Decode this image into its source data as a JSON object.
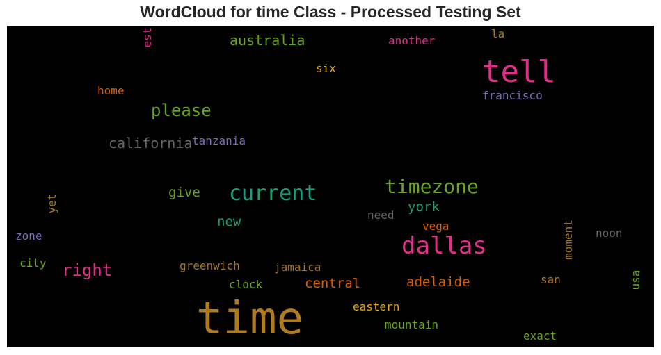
{
  "chart_data": {
    "type": "wordcloud",
    "title": "WordCloud for time Class - Processed Testing Set",
    "background": "#000000",
    "words": [
      {
        "text": "time",
        "color": "#b07a1f"
      },
      {
        "text": "tell",
        "color": "#e32f8a"
      },
      {
        "text": "dallas",
        "color": "#e32f8a"
      },
      {
        "text": "current",
        "color": "#1b9e77"
      },
      {
        "text": "timezone",
        "color": "#66a61e"
      },
      {
        "text": "please",
        "color": "#66a61e"
      },
      {
        "text": "right",
        "color": "#e32f8a"
      },
      {
        "text": "australia",
        "color": "#66a61e"
      },
      {
        "text": "california",
        "color": "#666666"
      },
      {
        "text": "adelaide",
        "color": "#d95f02"
      },
      {
        "text": "central",
        "color": "#d95f02"
      },
      {
        "text": "york",
        "color": "#1b9e77"
      },
      {
        "text": "give",
        "color": "#66a61e"
      },
      {
        "text": "new",
        "color": "#1b9e77"
      },
      {
        "text": "tanzania",
        "color": "#7570b3"
      },
      {
        "text": "francisco",
        "color": "#7570b3"
      },
      {
        "text": "another",
        "color": "#e7298a"
      },
      {
        "text": "home",
        "color": "#d95f02"
      },
      {
        "text": "six",
        "color": "#e6ab02"
      },
      {
        "text": "la",
        "color": "#a6761d"
      },
      {
        "text": "est",
        "color": "#e7298a"
      },
      {
        "text": "yet",
        "color": "#a6761d"
      },
      {
        "text": "zone",
        "color": "#7570b3"
      },
      {
        "text": "city",
        "color": "#66a61e"
      },
      {
        "text": "need",
        "color": "#666666"
      },
      {
        "text": "vega",
        "color": "#d95f02"
      },
      {
        "text": "greenwich",
        "color": "#a6761d"
      },
      {
        "text": "jamaica",
        "color": "#a6761d"
      },
      {
        "text": "clock",
        "color": "#66a61e"
      },
      {
        "text": "eastern",
        "color": "#e6ab02"
      },
      {
        "text": "mountain",
        "color": "#66a61e"
      },
      {
        "text": "exact",
        "color": "#66a61e"
      },
      {
        "text": "san",
        "color": "#a6761d"
      },
      {
        "text": "moment",
        "color": "#a6761d"
      },
      {
        "text": "noon",
        "color": "#666666"
      },
      {
        "text": "usa",
        "color": "#66a61e"
      }
    ]
  }
}
